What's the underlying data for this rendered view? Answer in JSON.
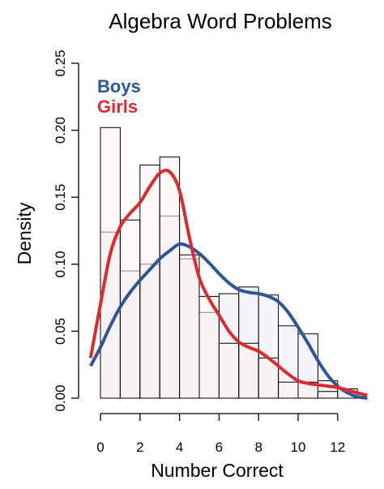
{
  "chart_data": {
    "type": "bar",
    "title": "Algebra Word Problems",
    "xlabel": "Number Correct",
    "ylabel": "Density",
    "xlim": [
      0,
      13
    ],
    "ylim": [
      0,
      0.25
    ],
    "x_ticks": [
      0,
      2,
      4,
      6,
      8,
      10,
      12
    ],
    "x_tick_labels": [
      "0",
      "2",
      "4",
      "6",
      "8",
      "10",
      "12"
    ],
    "y_ticks": [
      0.0,
      0.05,
      0.1,
      0.15,
      0.2,
      0.25
    ],
    "y_tick_labels": [
      "0.00",
      "0.05",
      "0.10",
      "0.15",
      "0.20",
      "0.25"
    ],
    "bin_edges": [
      0,
      1,
      2,
      3,
      4,
      5,
      6,
      7,
      8,
      9,
      10,
      11,
      12,
      13
    ],
    "histograms": [
      {
        "group": "Boys",
        "fill": "#f4f4fb",
        "densities": [
          0.124,
          0.095,
          0.1,
          0.136,
          0.104,
          0.064,
          0.078,
          0.083,
          0.077,
          0.054,
          0.048,
          0.013,
          0.007
        ]
      },
      {
        "group": "Girls",
        "fill": "#fbf0f0",
        "densities": [
          0.202,
          0.133,
          0.174,
          0.18,
          0.107,
          0.076,
          0.041,
          0.041,
          0.03,
          0.012,
          0.012,
          0.005,
          0.0
        ]
      }
    ],
    "series": [
      {
        "name": "Boys",
        "type": "density",
        "color": "#2f5597",
        "x": [
          -0.5,
          0,
          0.5,
          1,
          1.5,
          2,
          2.5,
          3,
          3.5,
          4,
          4.5,
          5,
          5.5,
          6,
          6.5,
          7,
          7.5,
          8,
          8.5,
          9,
          9.5,
          10,
          10.5,
          11,
          11.5,
          12,
          12.5,
          13,
          13.5
        ],
        "y": [
          0.024,
          0.038,
          0.054,
          0.068,
          0.079,
          0.088,
          0.096,
          0.104,
          0.11,
          0.115,
          0.113,
          0.108,
          0.101,
          0.093,
          0.086,
          0.081,
          0.079,
          0.078,
          0.076,
          0.072,
          0.064,
          0.053,
          0.041,
          0.028,
          0.017,
          0.009,
          0.004,
          0.001,
          0.0
        ]
      },
      {
        "name": "Girls",
        "type": "density",
        "color": "#dd2a2f",
        "x": [
          -0.5,
          0,
          0.5,
          1,
          1.5,
          2,
          2.5,
          3,
          3.5,
          4,
          4.5,
          5,
          5.5,
          6,
          6.5,
          7,
          7.5,
          8,
          8.5,
          9,
          9.5,
          10,
          10.5,
          11,
          11.5,
          12,
          12.5,
          13,
          13.5
        ],
        "y": [
          0.03,
          0.07,
          0.108,
          0.128,
          0.138,
          0.146,
          0.158,
          0.168,
          0.169,
          0.155,
          0.12,
          0.09,
          0.074,
          0.062,
          0.05,
          0.042,
          0.038,
          0.035,
          0.03,
          0.024,
          0.018,
          0.013,
          0.011,
          0.01,
          0.009,
          0.008,
          0.006,
          0.004,
          0.002
        ]
      }
    ],
    "legend": {
      "position": "top-left",
      "entries": [
        {
          "label": "Boys",
          "color": "#2f5597"
        },
        {
          "label": "Girls",
          "color": "#dd2a2f"
        }
      ]
    },
    "grid": false
  }
}
